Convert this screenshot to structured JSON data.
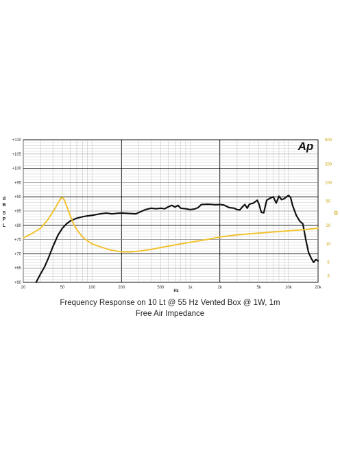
{
  "captions": {
    "line1": "Frequency Response on 10 Lt @ 55 Hz Vented Box @ 1W, 1m",
    "line2": "Free Air Impedance"
  },
  "logo_text": "Ap",
  "colors": {
    "spl": "#111111",
    "impedance": "#f2c230",
    "grid_minor": "#bdbdbd",
    "grid_major": "#111111",
    "right_ticks": "#c9a000"
  },
  "chart_data": {
    "type": "line",
    "x_scale": "log",
    "xlim": [
      20,
      20000
    ],
    "xlabel": "Hz",
    "x_ticks": [
      {
        "v": 20,
        "label": "20"
      },
      {
        "v": 50,
        "label": "50"
      },
      {
        "v": 100,
        "label": "100"
      },
      {
        "v": 200,
        "label": "200"
      },
      {
        "v": 500,
        "label": "500"
      },
      {
        "v": 1000,
        "label": "1k"
      },
      {
        "v": 2000,
        "label": "2k"
      },
      {
        "v": 5000,
        "label": "5k"
      },
      {
        "v": 10000,
        "label": "10k"
      },
      {
        "v": 20000,
        "label": "20k"
      }
    ],
    "y_left": {
      "label": "dB SPL",
      "lim": [
        60,
        110
      ],
      "ticks": [
        {
          "v": 110,
          "label": "+110"
        },
        {
          "v": 105,
          "label": "+105"
        },
        {
          "v": 100,
          "label": "+100"
        },
        {
          "v": 95,
          "label": "+95"
        },
        {
          "v": 90,
          "label": "+90"
        },
        {
          "v": 85,
          "label": "+85"
        },
        {
          "v": 80,
          "label": "+80"
        },
        {
          "v": 75,
          "label": "+75"
        },
        {
          "v": 70,
          "label": "+70"
        },
        {
          "v": 65,
          "label": "+65"
        },
        {
          "v": 60,
          "label": "+60"
        }
      ]
    },
    "y_right": {
      "label": "Ω",
      "scale": "log",
      "lim": [
        2.35,
        500
      ],
      "ticks": [
        {
          "v": 500,
          "label": "500"
        },
        {
          "v": 200,
          "label": "200"
        },
        {
          "v": 100,
          "label": "100"
        },
        {
          "v": 50,
          "label": "50"
        },
        {
          "v": 20,
          "label": "20"
        },
        {
          "v": 10,
          "label": "10"
        },
        {
          "v": 5,
          "label": "5"
        },
        {
          "v": 3,
          "label": "3"
        }
      ]
    },
    "grid": true,
    "series": [
      {
        "axis": "left",
        "x": [
          27,
          30,
          33,
          36,
          40,
          45,
          50,
          55,
          60,
          70,
          80,
          90,
          100,
          120,
          140,
          160,
          180,
          200,
          250,
          280,
          300,
          350,
          400,
          450,
          500,
          550,
          600,
          650,
          700,
          750,
          800,
          900,
          1000,
          1100,
          1200,
          1300,
          1500,
          1700,
          1800,
          2000,
          2200,
          2500,
          2800,
          3000,
          3200,
          3400,
          3600,
          3800,
          4000,
          4400,
          4800,
          5000,
          5300,
          5600,
          6000,
          6500,
          7000,
          7500,
          8000,
          8500,
          9000,
          10000,
          10500,
          11000,
          12000,
          13000,
          14000,
          15000,
          16000,
          17000,
          18000,
          19000,
          20000
        ],
        "y": [
          60,
          63,
          65.5,
          68.5,
          72.5,
          76.5,
          79,
          80.5,
          81.5,
          82.5,
          83,
          83.3,
          83.5,
          84,
          84.3,
          84,
          84.2,
          84.3,
          84.1,
          84,
          84.5,
          85.5,
          86,
          85.8,
          86,
          85.8,
          86.5,
          87,
          86.4,
          87,
          86,
          85.8,
          85.5,
          85.7,
          86.2,
          87.3,
          87.4,
          87.3,
          87.2,
          87.3,
          87.1,
          86.2,
          86,
          85.5,
          85.4,
          86.5,
          87.3,
          86,
          87.4,
          87.8,
          88.8,
          87.5,
          84.5,
          84.4,
          88.8,
          89.5,
          90,
          87.8,
          90.2,
          89,
          89.3,
          90.5,
          89.8,
          87,
          83.5,
          81.5,
          80.5,
          75,
          70.5,
          68.5,
          67,
          68,
          67.5
        ]
      },
      {
        "axis": "right",
        "x": [
          20,
          25,
          30,
          35,
          40,
          45,
          48,
          50,
          52,
          55,
          60,
          65,
          70,
          80,
          90,
          100,
          120,
          150,
          180,
          200,
          250,
          300,
          400,
          500,
          700,
          1000,
          1500,
          2000,
          3000,
          5000,
          7000,
          10000,
          15000,
          20000
        ],
        "y": [
          12.5,
          15,
          18,
          24,
          33,
          46,
          55,
          57,
          53,
          42,
          29,
          21,
          17,
          13,
          11.2,
          10,
          9,
          8,
          7.6,
          7.4,
          7.4,
          7.6,
          8.1,
          8.7,
          9.6,
          10.6,
          11.8,
          12.9,
          14,
          15,
          15.6,
          16.3,
          17.1,
          18
        ]
      }
    ]
  }
}
